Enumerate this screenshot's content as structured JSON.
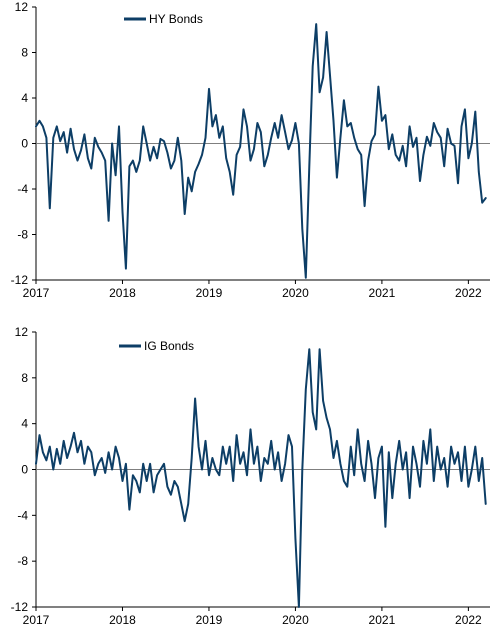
{
  "colors": {
    "series": "#0d3e66",
    "axis": "#000000",
    "zero_line": "#7f7f7f",
    "background": "#ffffff"
  },
  "chart_data": [
    {
      "type": "line",
      "title": "",
      "xlabel": "",
      "ylabel": "",
      "ylim": [
        -12,
        12
      ],
      "yticks": [
        12,
        8,
        4,
        0,
        -4,
        -8,
        -12
      ],
      "xlim": [
        2017.0,
        2022.25
      ],
      "xticks": [
        2017,
        2018,
        2019,
        2020,
        2021,
        2022
      ],
      "grid": false,
      "legend": "top-left",
      "series": [
        {
          "name": "HY Bonds",
          "x": [
            2017.0,
            2017.04,
            2017.08,
            2017.12,
            2017.16,
            2017.2,
            2017.24,
            2017.28,
            2017.32,
            2017.36,
            2017.4,
            2017.44,
            2017.48,
            2017.52,
            2017.56,
            2017.6,
            2017.64,
            2017.68,
            2017.72,
            2017.76,
            2017.8,
            2017.84,
            2017.88,
            2017.92,
            2017.96,
            2018.0,
            2018.04,
            2018.08,
            2018.12,
            2018.16,
            2018.2,
            2018.24,
            2018.28,
            2018.32,
            2018.36,
            2018.4,
            2018.44,
            2018.48,
            2018.52,
            2018.56,
            2018.6,
            2018.64,
            2018.68,
            2018.72,
            2018.76,
            2018.8,
            2018.84,
            2018.88,
            2018.92,
            2018.96,
            2019.0,
            2019.04,
            2019.08,
            2019.12,
            2019.16,
            2019.2,
            2019.24,
            2019.28,
            2019.32,
            2019.36,
            2019.4,
            2019.44,
            2019.48,
            2019.52,
            2019.56,
            2019.6,
            2019.64,
            2019.68,
            2019.72,
            2019.76,
            2019.8,
            2019.84,
            2019.88,
            2019.92,
            2019.96,
            2020.0,
            2020.04,
            2020.08,
            2020.12,
            2020.16,
            2020.2,
            2020.24,
            2020.28,
            2020.32,
            2020.36,
            2020.4,
            2020.44,
            2020.48,
            2020.52,
            2020.56,
            2020.6,
            2020.64,
            2020.68,
            2020.72,
            2020.76,
            2020.8,
            2020.84,
            2020.88,
            2020.92,
            2020.96,
            2021.0,
            2021.04,
            2021.08,
            2021.12,
            2021.16,
            2021.2,
            2021.24,
            2021.28,
            2021.32,
            2021.36,
            2021.4,
            2021.44,
            2021.48,
            2021.52,
            2021.56,
            2021.6,
            2021.64,
            2021.68,
            2021.72,
            2021.76,
            2021.8,
            2021.84,
            2021.88,
            2021.92,
            2021.96,
            2022.0,
            2022.04,
            2022.08,
            2022.12,
            2022.16,
            2022.2
          ],
          "values": [
            1.5,
            2.0,
            1.5,
            0.5,
            -5.7,
            0.5,
            1.5,
            0.2,
            1.0,
            -0.8,
            1.3,
            -0.5,
            -1.5,
            -0.6,
            0.8,
            -1.3,
            -2.2,
            0.5,
            -0.3,
            -0.8,
            -1.5,
            -6.8,
            0.0,
            -2.8,
            1.5,
            -6.0,
            -11.0,
            -2.0,
            -1.5,
            -2.5,
            -1.5,
            1.5,
            0.0,
            -1.5,
            -0.3,
            -1.3,
            0.4,
            0.2,
            -0.8,
            -2.2,
            -1.5,
            0.5,
            -1.5,
            -6.2,
            -3.0,
            -4.2,
            -2.5,
            -1.8,
            -1.0,
            0.5,
            4.8,
            1.5,
            2.5,
            0.5,
            1.5,
            -1.3,
            -2.5,
            -4.5,
            -1.0,
            -0.3,
            3.0,
            1.5,
            -1.5,
            -0.5,
            1.8,
            1.0,
            -2.0,
            -1.0,
            0.5,
            1.8,
            0.5,
            2.5,
            1.0,
            -0.5,
            0.3,
            1.8,
            0.0,
            -7.5,
            -11.8,
            -2.0,
            6.8,
            10.5,
            4.5,
            5.8,
            9.8,
            6.0,
            2.0,
            -3.0,
            0.5,
            3.8,
            1.5,
            1.8,
            0.5,
            -0.5,
            -1.0,
            -5.5,
            -1.5,
            0.2,
            0.8,
            5.0,
            2.0,
            2.5,
            -0.5,
            0.8,
            -1.0,
            -1.5,
            -0.2,
            -2.0,
            1.5,
            -0.3,
            0.5,
            -3.3,
            -1.0,
            0.6,
            -0.2,
            1.8,
            1.0,
            0.5,
            -2.0,
            1.3,
            0.0,
            -0.2,
            -3.5,
            1.5,
            3.0,
            -1.3,
            0.0,
            2.8,
            -2.5,
            -5.2,
            -4.8
          ]
        }
      ]
    },
    {
      "type": "line",
      "title": "",
      "xlabel": "",
      "ylabel": "",
      "ylim": [
        -12,
        12
      ],
      "yticks": [
        12,
        8,
        4,
        0,
        -4,
        -8,
        -12
      ],
      "xlim": [
        2017.0,
        2022.25
      ],
      "xticks": [
        2017,
        2018,
        2019,
        2020,
        2021,
        2022
      ],
      "grid": false,
      "legend": "top-left",
      "series": [
        {
          "name": "IG Bonds",
          "x": [
            2017.0,
            2017.04,
            2017.08,
            2017.12,
            2017.16,
            2017.2,
            2017.24,
            2017.28,
            2017.32,
            2017.36,
            2017.4,
            2017.44,
            2017.48,
            2017.52,
            2017.56,
            2017.6,
            2017.64,
            2017.68,
            2017.72,
            2017.76,
            2017.8,
            2017.84,
            2017.88,
            2017.92,
            2017.96,
            2018.0,
            2018.04,
            2018.08,
            2018.12,
            2018.16,
            2018.2,
            2018.24,
            2018.28,
            2018.32,
            2018.36,
            2018.4,
            2018.44,
            2018.48,
            2018.52,
            2018.56,
            2018.6,
            2018.64,
            2018.68,
            2018.72,
            2018.76,
            2018.8,
            2018.84,
            2018.88,
            2018.92,
            2018.96,
            2019.0,
            2019.04,
            2019.08,
            2019.12,
            2019.16,
            2019.2,
            2019.24,
            2019.28,
            2019.32,
            2019.36,
            2019.4,
            2019.44,
            2019.48,
            2019.52,
            2019.56,
            2019.6,
            2019.64,
            2019.68,
            2019.72,
            2019.76,
            2019.8,
            2019.84,
            2019.88,
            2019.92,
            2019.96,
            2020.0,
            2020.04,
            2020.08,
            2020.12,
            2020.16,
            2020.2,
            2020.24,
            2020.28,
            2020.32,
            2020.36,
            2020.4,
            2020.44,
            2020.48,
            2020.52,
            2020.56,
            2020.6,
            2020.64,
            2020.68,
            2020.72,
            2020.76,
            2020.8,
            2020.84,
            2020.88,
            2020.92,
            2020.96,
            2021.0,
            2021.04,
            2021.08,
            2021.12,
            2021.16,
            2021.2,
            2021.24,
            2021.28,
            2021.32,
            2021.36,
            2021.4,
            2021.44,
            2021.48,
            2021.52,
            2021.56,
            2021.6,
            2021.64,
            2021.68,
            2021.72,
            2021.76,
            2021.8,
            2021.84,
            2021.88,
            2021.92,
            2021.96,
            2022.0,
            2022.04,
            2022.08,
            2022.12,
            2022.16,
            2022.2
          ],
          "values": [
            0.5,
            3.0,
            1.5,
            0.8,
            2.0,
            0.0,
            1.8,
            0.5,
            2.5,
            1.0,
            2.0,
            3.2,
            1.5,
            2.5,
            0.5,
            2.0,
            1.5,
            -0.5,
            0.5,
            1.0,
            -0.3,
            1.5,
            0.0,
            2.0,
            1.0,
            -1.0,
            0.5,
            -3.5,
            -0.5,
            -1.0,
            -2.0,
            0.5,
            -1.0,
            0.5,
            -2.0,
            -0.5,
            0.0,
            0.5,
            -1.5,
            -2.2,
            -1.0,
            -1.5,
            -3.0,
            -4.5,
            -3.0,
            1.0,
            6.2,
            2.0,
            0.0,
            2.5,
            -0.5,
            1.0,
            0.0,
            -0.5,
            2.0,
            0.5,
            2.0,
            -1.0,
            3.0,
            0.5,
            1.5,
            -0.5,
            3.5,
            0.5,
            2.0,
            -1.0,
            1.0,
            0.5,
            2.5,
            0.0,
            1.5,
            -1.0,
            0.5,
            3.0,
            2.0,
            -6.0,
            -12.0,
            0.0,
            7.0,
            10.5,
            5.0,
            3.5,
            10.5,
            6.0,
            4.5,
            3.5,
            1.0,
            2.5,
            0.5,
            -1.0,
            -1.5,
            2.0,
            -0.5,
            3.5,
            0.5,
            -1.0,
            2.5,
            0.5,
            -2.5,
            1.0,
            2.0,
            -5.0,
            1.5,
            -2.5,
            0.5,
            2.5,
            0.0,
            1.5,
            -2.5,
            2.0,
            0.5,
            -1.5,
            2.5,
            0.5,
            3.5,
            -1.0,
            2.0,
            0.0,
            1.0,
            -1.5,
            2.0,
            0.5,
            1.5,
            -1.0,
            2.0,
            -1.5,
            0.0,
            2.0,
            -1.0,
            1.0,
            -3.0
          ]
        }
      ]
    }
  ]
}
